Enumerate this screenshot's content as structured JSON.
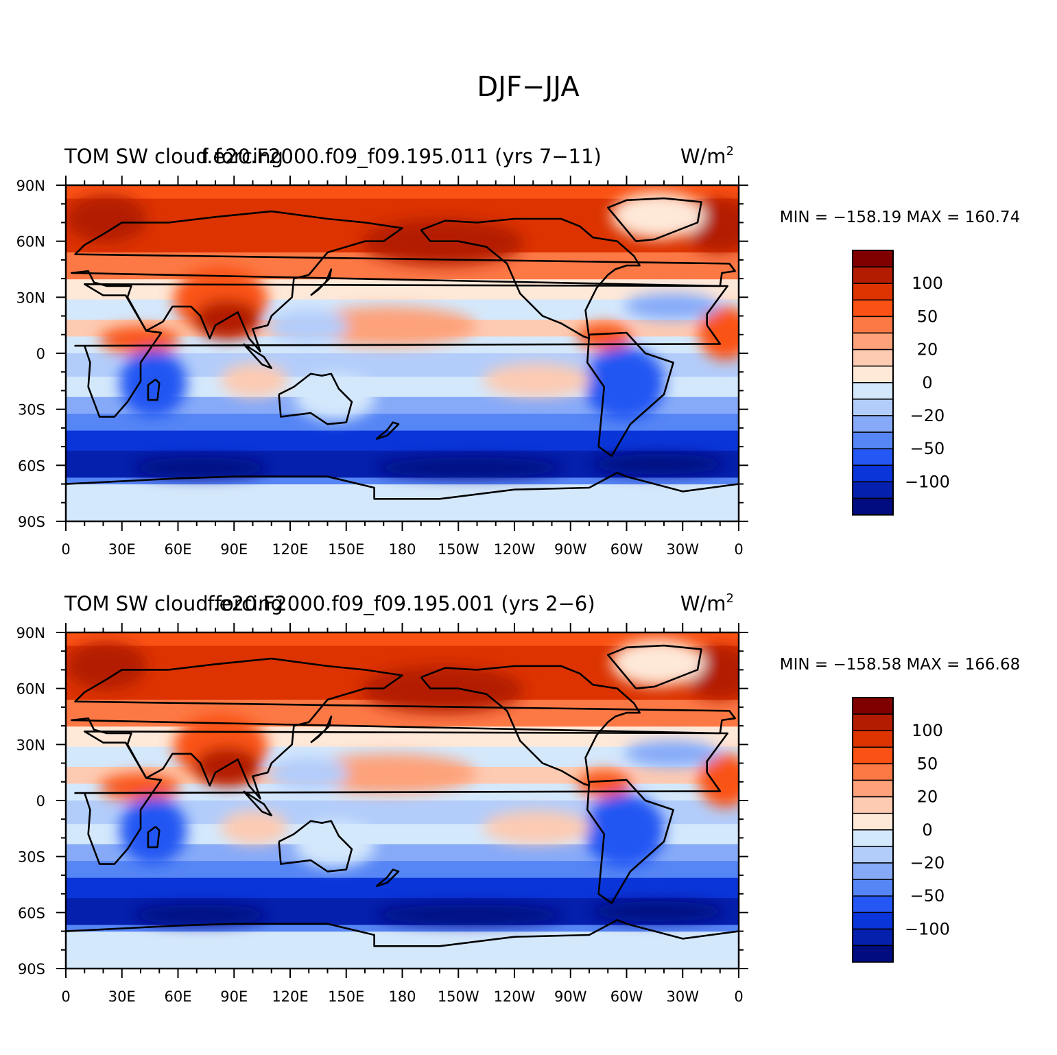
{
  "figure": {
    "title": "DJF−JJA"
  },
  "panels": [
    {
      "left_title": "TOM SW cloud forcing",
      "center_title": "f.e20.F2000.f09_f09.195.011 (yrs 7−11)",
      "right_title": "W/m",
      "right_title_sup": "2",
      "stats": "MIN = −158.19  MAX = 160.74"
    },
    {
      "left_title": "TOM SW cloud forcing",
      "center_title": "f.e20.F2000.f09_f09.195.001 (yrs 2−6)",
      "right_title": "W/m",
      "right_title_sup": "2",
      "stats": "MIN = −158.58  MAX = 166.68"
    }
  ],
  "axes": {
    "lat_labels": [
      "90N",
      "60N",
      "30N",
      "0",
      "30S",
      "60S",
      "90S"
    ],
    "lon_labels": [
      "0",
      "30E",
      "60E",
      "90E",
      "120E",
      "150E",
      "180",
      "150W",
      "120W",
      "90W",
      "60W",
      "30W",
      "0"
    ]
  },
  "colorbar": {
    "labels": [
      "100",
      "50",
      "20",
      "0",
      "−20",
      "−50",
      "−100"
    ],
    "colors_top_to_bottom": [
      "#800000",
      "#b31c00",
      "#dc3300",
      "#fa5214",
      "#fc7845",
      "#fda27a",
      "#fdcab2",
      "#fee8d8",
      "#d4e8fc",
      "#b3cdfb",
      "#87aaf8",
      "#5685f5",
      "#2457f3",
      "#0a35d8",
      "#0420ad",
      "#000c80"
    ]
  },
  "colors": {
    "ocean_bg": "#d4e8fc",
    "coast": "#000000"
  }
}
